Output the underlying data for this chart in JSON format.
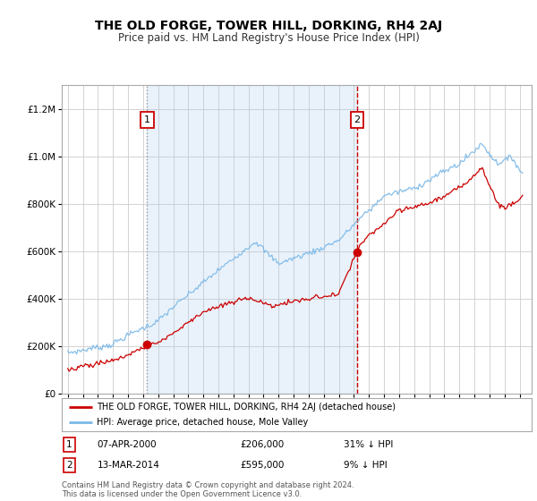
{
  "title": "THE OLD FORGE, TOWER HILL, DORKING, RH4 2AJ",
  "subtitle": "Price paid vs. HM Land Registry's House Price Index (HPI)",
  "title_fontsize": 10,
  "subtitle_fontsize": 8.5,
  "background_color": "#ffffff",
  "plot_bg_color": "#ffffff",
  "grid_color": "#cccccc",
  "hpi_color": "#7ab8e8",
  "price_color": "#cc0000",
  "marker_color": "#cc0000",
  "sale1_year": 2000.27,
  "sale1_price": 206000,
  "sale1_label": "1",
  "sale1_date": "07-APR-2000",
  "sale1_pct": "31% ↓ HPI",
  "sale2_year": 2014.21,
  "sale2_price": 595000,
  "sale2_label": "2",
  "sale2_date": "13-MAR-2014",
  "sale2_pct": "9% ↓ HPI",
  "ylim_min": 0,
  "ylim_max": 1300000,
  "xlim_min": 1994.6,
  "xlim_max": 2025.8,
  "legend_label_red": "THE OLD FORGE, TOWER HILL, DORKING, RH4 2AJ (detached house)",
  "legend_label_blue": "HPI: Average price, detached house, Mole Valley",
  "footnote": "Contains HM Land Registry data © Crown copyright and database right 2024.\nThis data is licensed under the Open Government Licence v3.0.",
  "shade_color": "#ddeeff"
}
